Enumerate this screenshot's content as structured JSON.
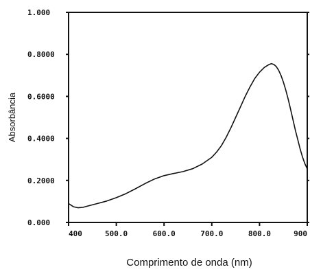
{
  "chart_data": {
    "type": "line",
    "xlabel": "Comprimento de onda (nm)",
    "ylabel": "Absorbância",
    "xlim": [
      400,
      900
    ],
    "ylim": [
      0,
      1.0
    ],
    "x_ticks": [
      {
        "value": 400,
        "label": "400"
      },
      {
        "value": 500,
        "label": "500.0"
      },
      {
        "value": 600,
        "label": "600.0"
      },
      {
        "value": 700,
        "label": "700.0"
      },
      {
        "value": 800,
        "label": "800.0"
      },
      {
        "value": 900,
        "label": "900"
      }
    ],
    "y_ticks": [
      {
        "value": 0.0,
        "label": "0.000"
      },
      {
        "value": 0.2,
        "label": "0.2000"
      },
      {
        "value": 0.4,
        "label": "0.4000"
      },
      {
        "value": 0.6,
        "label": "0.6000"
      },
      {
        "value": 0.8,
        "label": "0.8000"
      },
      {
        "value": 1.0,
        "label": "1.000"
      }
    ],
    "grid": false,
    "series": [
      {
        "color": "#111111",
        "x": [
          400,
          410,
          420,
          430,
          440,
          460,
          480,
          500,
          520,
          540,
          560,
          580,
          600,
          620,
          640,
          660,
          680,
          700,
          710,
          720,
          730,
          740,
          750,
          760,
          770,
          780,
          790,
          800,
          810,
          820,
          825,
          830,
          835,
          840,
          845,
          850,
          855,
          860,
          865,
          870,
          875,
          880,
          885,
          890,
          895,
          900
        ],
        "y": [
          0.09,
          0.075,
          0.07,
          0.072,
          0.078,
          0.09,
          0.102,
          0.118,
          0.137,
          0.16,
          0.185,
          0.207,
          0.223,
          0.233,
          0.242,
          0.256,
          0.278,
          0.31,
          0.335,
          0.365,
          0.405,
          0.45,
          0.5,
          0.55,
          0.6,
          0.645,
          0.685,
          0.715,
          0.738,
          0.752,
          0.756,
          0.752,
          0.742,
          0.725,
          0.7,
          0.668,
          0.63,
          0.587,
          0.54,
          0.49,
          0.44,
          0.395,
          0.35,
          0.312,
          0.28,
          0.255
        ]
      }
    ]
  }
}
